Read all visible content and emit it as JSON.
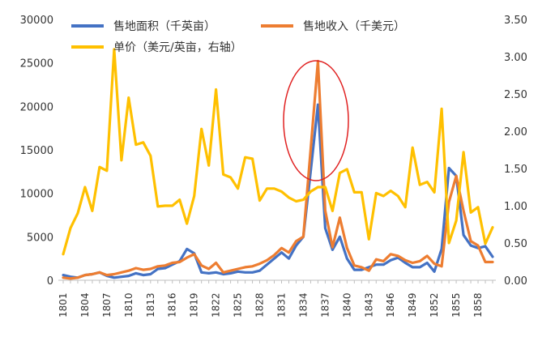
{
  "colors": {
    "area": "#4472C4",
    "income": "#ED7D31",
    "price": "#FFC000",
    "highlight": "#E02020",
    "axis": "#BFBFBF",
    "text": "#333333"
  },
  "chart_data": {
    "type": "line",
    "x": [
      1801,
      1802,
      1803,
      1804,
      1805,
      1806,
      1807,
      1808,
      1809,
      1810,
      1811,
      1812,
      1813,
      1814,
      1815,
      1816,
      1817,
      1818,
      1819,
      1820,
      1821,
      1822,
      1823,
      1824,
      1825,
      1826,
      1827,
      1828,
      1829,
      1830,
      1831,
      1832,
      1833,
      1834,
      1835,
      1836,
      1837,
      1838,
      1839,
      1840,
      1841,
      1842,
      1843,
      1844,
      1845,
      1846,
      1847,
      1848,
      1849,
      1850,
      1851,
      1852,
      1853,
      1854,
      1855,
      1856,
      1857,
      1858,
      1859,
      1860
    ],
    "x_tick_labels": [
      "1801",
      "1804",
      "1807",
      "1810",
      "1813",
      "1816",
      "1819",
      "1822",
      "1825",
      "1828",
      "1831",
      "1834",
      "1837",
      "1840",
      "1843",
      "1846",
      "1849",
      "1852",
      "1855",
      "1858"
    ],
    "y_left_ticks": [
      "0",
      "5000",
      "10000",
      "15000",
      "20000",
      "25000",
      "30000"
    ],
    "y_right_ticks": [
      "0.00",
      "0.50",
      "1.00",
      "1.50",
      "2.00",
      "2.50",
      "3.00",
      "3.50"
    ],
    "ylim_left": [
      0,
      30000
    ],
    "ylim_right": [
      0,
      3.5
    ],
    "legend_position": "top",
    "grid": false,
    "series": [
      {
        "name": "售地面积（千英亩）",
        "axis": "left",
        "color": "#4472C4",
        "values": [
          600,
          400,
          300,
          600,
          700,
          900,
          500,
          300,
          400,
          500,
          800,
          600,
          700,
          1300,
          1400,
          1800,
          2200,
          3600,
          3100,
          900,
          800,
          900,
          700,
          800,
          1000,
          900,
          900,
          1100,
          1800,
          2500,
          3200,
          2500,
          4000,
          5000,
          12500,
          20200,
          6000,
          3500,
          5000,
          2500,
          1200,
          1200,
          1500,
          1800,
          1800,
          2300,
          2600,
          2000,
          1500,
          1500,
          2000,
          1000,
          3600,
          12900,
          12000,
          5200,
          4000,
          3700,
          3900,
          2700
        ]
      },
      {
        "name": "售地收入（千美元）",
        "axis": "left",
        "color": "#ED7D31",
        "values": [
          300,
          200,
          300,
          600,
          700,
          900,
          600,
          700,
          900,
          1100,
          1400,
          1200,
          1300,
          1600,
          1700,
          2000,
          2100,
          2600,
          3000,
          1700,
          1300,
          2000,
          900,
          1100,
          1300,
          1500,
          1600,
          1900,
          2300,
          2900,
          3700,
          3200,
          4500,
          5000,
          15000,
          25200,
          8000,
          3800,
          7200,
          3700,
          1700,
          1500,
          1100,
          2400,
          2200,
          3000,
          2800,
          2300,
          2000,
          2200,
          2800,
          1900,
          1600,
          9000,
          12000,
          8000,
          4500,
          4000,
          2100,
          2100
        ]
      },
      {
        "name": "单价（美元/英亩，右轴）",
        "axis": "right",
        "color": "#FFC000",
        "values": [
          0.35,
          0.7,
          0.9,
          1.25,
          0.93,
          1.52,
          1.47,
          3.1,
          1.61,
          2.45,
          1.82,
          1.85,
          1.67,
          0.99,
          1.0,
          1.0,
          1.08,
          0.76,
          1.13,
          2.03,
          1.54,
          2.56,
          1.42,
          1.38,
          1.23,
          1.65,
          1.63,
          1.07,
          1.23,
          1.23,
          1.19,
          1.11,
          1.06,
          1.08,
          1.19,
          1.25,
          1.25,
          0.93,
          1.44,
          1.49,
          1.18,
          1.18,
          0.55,
          1.17,
          1.13,
          1.2,
          1.13,
          0.98,
          1.78,
          1.28,
          1.32,
          1.18,
          2.3,
          0.5,
          0.8,
          1.72,
          0.91,
          0.98,
          0.49,
          0.71
        ]
      }
    ]
  }
}
